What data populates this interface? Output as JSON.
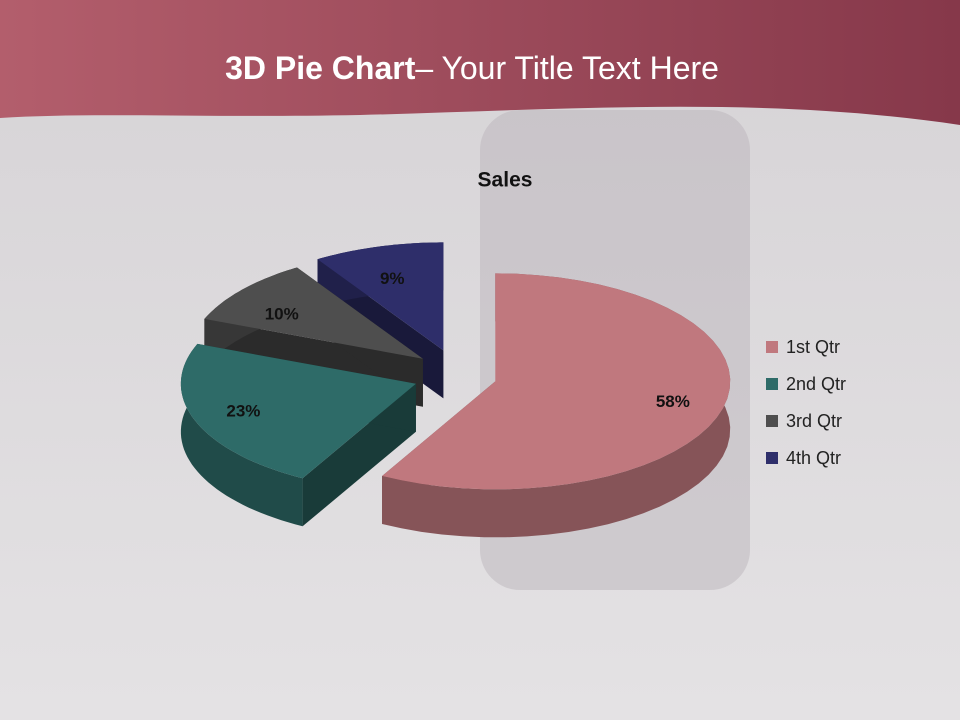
{
  "slide": {
    "title_bold": "3D Pie Chart",
    "title_rest": "– Your Title Text Here"
  },
  "chart_data": {
    "type": "pie",
    "title": "Sales",
    "categories": [
      "1st Qtr",
      "2nd Qtr",
      "3rd Qtr",
      "4th Qtr"
    ],
    "values": [
      58,
      23,
      10,
      9
    ],
    "value_labels": [
      "58%",
      "23%",
      "10%",
      "9%"
    ],
    "colors": [
      "#c0787e",
      "#2e6b68",
      "#4e4e4e",
      "#2e2e6a"
    ],
    "legend": "right"
  }
}
